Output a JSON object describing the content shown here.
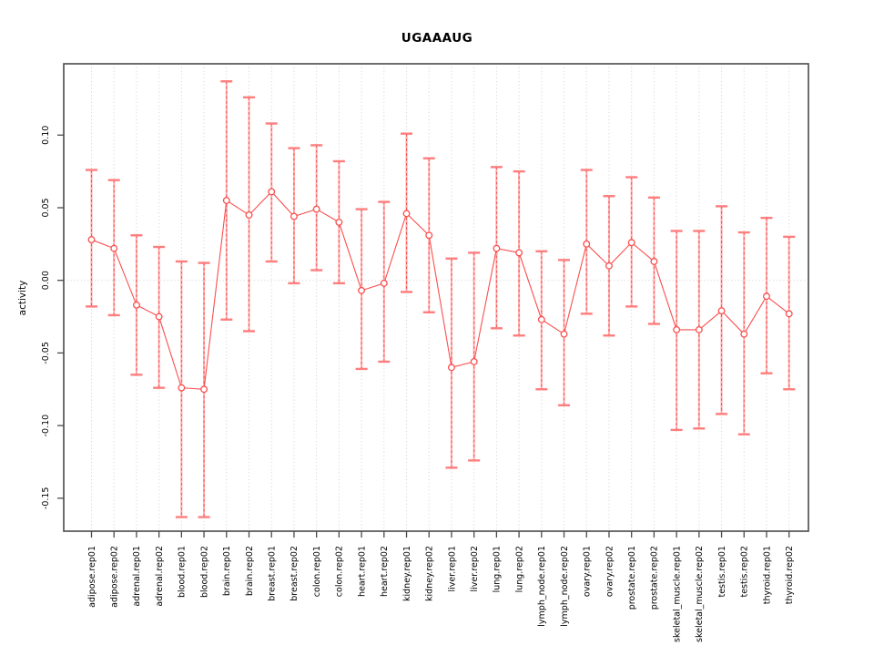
{
  "page": {
    "title": "UGAAAUG"
  },
  "chart_data": {
    "type": "line",
    "title": "UGAAAUG",
    "xlabel": "",
    "ylabel": "activity",
    "legend": "none",
    "grid": "vertical-dotted-gridlines-plus-dotted-zero-line",
    "point_style": "open-circle-with-error-bars",
    "categories": [
      "adipose.rep01",
      "adipose.rep02",
      "adrenal.rep01",
      "adrenal.rep02",
      "blood.rep01",
      "blood.rep02",
      "brain.rep01",
      "brain.rep02",
      "breast.rep01",
      "breast.rep02",
      "colon.rep01",
      "colon.rep02",
      "heart.rep01",
      "heart.rep02",
      "kidney.rep01",
      "kidney.rep02",
      "liver.rep01",
      "liver.rep02",
      "lung.rep01",
      "lung.rep02",
      "lymph_node.rep01",
      "lymph_node.rep02",
      "ovary.rep01",
      "ovary.rep02",
      "prostate.rep01",
      "prostate.rep02",
      "skeletal_muscle.rep01",
      "skeletal_muscle.rep02",
      "testis.rep01",
      "testis.rep02",
      "thyroid.rep01",
      "thyroid.rep02"
    ],
    "series": [
      {
        "name": "activity",
        "values": [
          0.028,
          0.022,
          -0.017,
          -0.025,
          -0.074,
          -0.075,
          0.055,
          0.045,
          0.061,
          0.044,
          0.049,
          0.04,
          -0.007,
          -0.002,
          0.046,
          0.031,
          -0.06,
          -0.056,
          0.022,
          0.019,
          -0.027,
          -0.037,
          0.025,
          0.01,
          0.026,
          0.013,
          -0.034,
          -0.034,
          -0.021,
          -0.037,
          -0.011,
          -0.023
        ],
        "ci_high": [
          0.076,
          0.069,
          0.031,
          0.023,
          0.013,
          0.012,
          0.137,
          0.126,
          0.108,
          0.091,
          0.093,
          0.082,
          0.049,
          0.054,
          0.101,
          0.084,
          0.015,
          0.019,
          0.078,
          0.075,
          0.02,
          0.014,
          0.076,
          0.058,
          0.071,
          0.057,
          0.034,
          0.034,
          0.051,
          0.033,
          0.043,
          0.03
        ],
        "ci_low": [
          -0.018,
          -0.024,
          -0.065,
          -0.074,
          -0.163,
          -0.163,
          -0.027,
          -0.035,
          0.013,
          -0.002,
          0.007,
          -0.002,
          -0.061,
          -0.056,
          -0.008,
          -0.022,
          -0.129,
          -0.124,
          -0.033,
          -0.038,
          -0.075,
          -0.086,
          -0.023,
          -0.038,
          -0.018,
          -0.03,
          -0.103,
          -0.102,
          -0.092,
          -0.106,
          -0.064,
          -0.075
        ]
      }
    ],
    "yticks": [
      -0.15,
      -0.1,
      -0.05,
      0.0,
      0.05,
      0.1
    ],
    "ytick_labels": [
      "-0.15",
      "-0.10",
      "-0.05",
      "0.00",
      "0.05",
      "0.10"
    ],
    "ylim": [
      -0.1727,
      0.1491
    ],
    "zero_line": 0.0,
    "colors": {
      "line": "#f94f4f",
      "point_stroke": "#f94f4f",
      "stem_dashed": "#f94f4f",
      "stem_solid": "#ff9a9a",
      "cap": "#ff7d7d",
      "grid": "#cfcfcf",
      "axis": "#4a4a4a",
      "text": "#000000",
      "background": "#ffffff"
    }
  }
}
